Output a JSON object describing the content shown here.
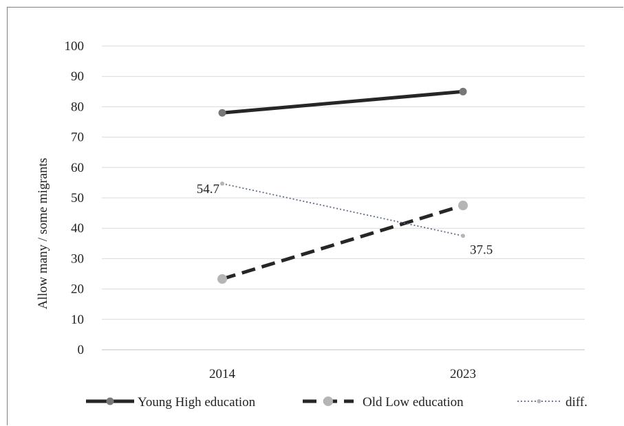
{
  "chart_data": {
    "type": "line",
    "categories": [
      "2014",
      "2023"
    ],
    "series": [
      {
        "name": "Young High education",
        "values": [
          78,
          85
        ],
        "color": "#262626",
        "style": "solid",
        "marker": "#777777"
      },
      {
        "name": "Old Low education",
        "values": [
          23.3,
          47.5
        ],
        "color": "#262626",
        "style": "dashed",
        "marker": "#b5b5b5"
      },
      {
        "name": "diff.",
        "values": [
          54.7,
          37.5
        ],
        "color": "#5b6b85",
        "style": "dotted",
        "marker": "#b5b5b5",
        "labels": [
          "54.7",
          "37.5"
        ]
      }
    ],
    "ylabel": "Allow many / some migrants",
    "ylim": [
      0,
      100
    ],
    "yticks": [
      "0",
      "10",
      "20",
      "30",
      "40",
      "50",
      "60",
      "70",
      "80",
      "90",
      "100"
    ],
    "grid": true,
    "legend": "bottom"
  }
}
